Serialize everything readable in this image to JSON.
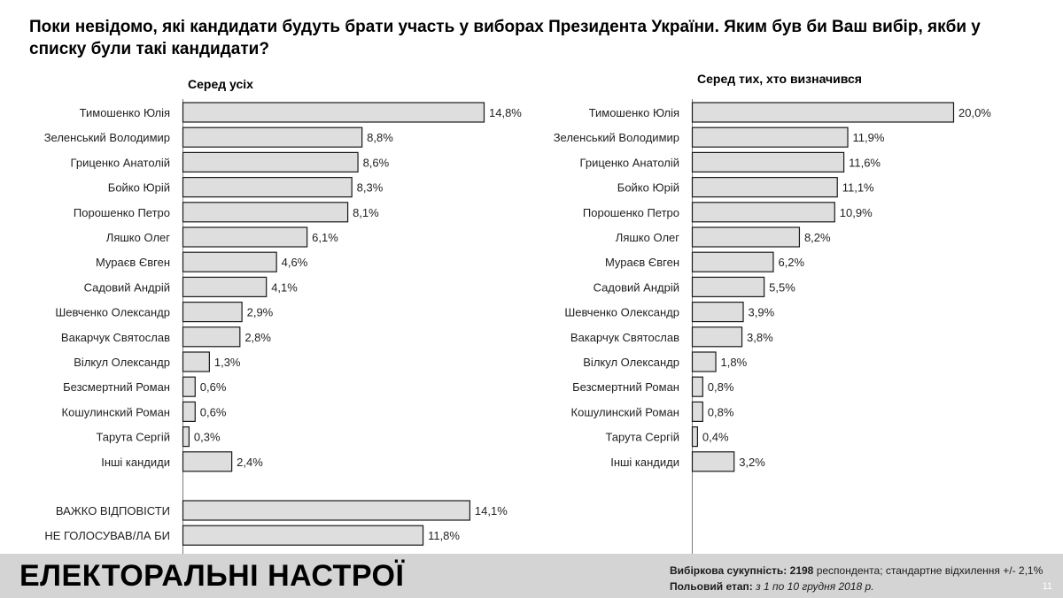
{
  "title": "Поки невідомо, які кандидати будуть брати участь у виборах Президента України. Яким був би Ваш вибір, якби у списку були такі кандидати?",
  "chart_data": [
    {
      "type": "bar",
      "orientation": "horizontal",
      "title": "Серед усіх",
      "unit": "%",
      "categories": [
        "Тимошенко Юлія",
        "Зеленський Володимир",
        "Гриценко Анатолій",
        "Бойко Юрій",
        "Порошенко Петро",
        "Ляшко Олег",
        "Мураєв Євген",
        "Садовий Андрій",
        "Шевченко Олександр",
        "Вакарчук Святослав",
        "Вілкул Олександр",
        "Безсмертний Роман",
        "Кошулинский Роман",
        "Тарута Сергій",
        "Інші  кандиди"
      ],
      "values": [
        14.8,
        8.8,
        8.6,
        8.3,
        8.1,
        6.1,
        4.6,
        4.1,
        2.9,
        2.8,
        1.3,
        0.6,
        0.6,
        0.3,
        2.4
      ],
      "labels": [
        "14,8%",
        "8,8%",
        "8,6%",
        "8,3%",
        "8,1%",
        "6,1%",
        "4,6%",
        "4,1%",
        "2,9%",
        "2,8%",
        "1,3%",
        "0,6%",
        "0,6%",
        "0,3%",
        "2,4%"
      ],
      "extra_categories": [
        "ВАЖКО ВІДПОВІСТИ",
        "НЕ ГОЛОСУВАВ/ЛА БИ"
      ],
      "extra_values": [
        14.1,
        11.8
      ],
      "extra_labels": [
        "14,1%",
        "11,8%"
      ]
    },
    {
      "type": "bar",
      "orientation": "horizontal",
      "title": "Серед тих, хто визначився",
      "unit": "%",
      "categories": [
        "Тимошенко Юлія",
        "Зеленський Володимир",
        "Гриценко Анатолій",
        "Бойко Юрій",
        "Порошенко Петро",
        "Ляшко Олег",
        "Мураєв Євген",
        "Садовий Андрій",
        "Шевченко Олександр",
        "Вакарчук Святослав",
        "Вілкул Олександр",
        "Безсмертний Роман",
        "Кошулинский Роман",
        "Тарута Сергій",
        "Інші  кандиди"
      ],
      "values": [
        20.0,
        11.9,
        11.6,
        11.1,
        10.9,
        8.2,
        6.2,
        5.5,
        3.9,
        3.8,
        1.8,
        0.8,
        0.8,
        0.4,
        3.2
      ],
      "labels": [
        "20,0%",
        "11,9%",
        "11,6%",
        "11,1%",
        "10,9%",
        "8,2%",
        "6,2%",
        "5,5%",
        "3,9%",
        "3,8%",
        "1,8%",
        "0,8%",
        "0,8%",
        "0,4%",
        "3,2%"
      ]
    }
  ],
  "footer": {
    "title": "ЕЛЕКТОРАЛЬНІ НАСТРОЇ",
    "sample_label": "Вибіркова сукупність:",
    "sample_count": "2198",
    "sample_text": "респондента; стандартне  відхилення +/- 2,1%",
    "fieldwork_label": "Польовий етап:",
    "fieldwork_text": "з 1 по 10 грудня 2018 р.",
    "page_number": "11"
  },
  "colors": {
    "bar_fill": "#dedede",
    "bar_stroke": "#1a1a1a",
    "footer_bg": "#d4d4d4"
  }
}
